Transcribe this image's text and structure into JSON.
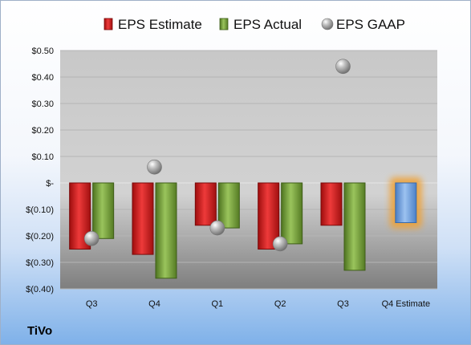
{
  "company": "TiVo",
  "chart_data": {
    "type": "bar",
    "categories": [
      "Q3",
      "Q4",
      "Q1",
      "Q2",
      "Q3",
      "Q4 Estimate"
    ],
    "series": [
      {
        "name": "EPS Estimate",
        "values": [
          -0.25,
          -0.27,
          -0.16,
          -0.25,
          -0.16,
          null
        ],
        "color": "#d42020"
      },
      {
        "name": "EPS Actual",
        "values": [
          -0.21,
          -0.36,
          -0.17,
          -0.23,
          -0.33,
          null
        ],
        "color": "#6e9a32"
      },
      {
        "name": "EPS GAAP",
        "values": [
          -0.21,
          0.06,
          -0.17,
          -0.23,
          0.44,
          null
        ],
        "color": "#9a9a9a",
        "marker": "sphere"
      }
    ],
    "estimate": {
      "category": "Q4 Estimate",
      "value": -0.15,
      "color": "#6f9fdc",
      "glow": "#f0a030"
    },
    "yticks": [
      0.5,
      0.4,
      0.3,
      0.2,
      0.1,
      0,
      -0.1,
      -0.2,
      -0.3,
      -0.4
    ],
    "ytick_labels": [
      "$0.50",
      "$0.40",
      "$0.30",
      "$0.20",
      "$0.10",
      "$-",
      "$(0.10)",
      "$(0.20)",
      "$(0.30)",
      "$(0.40)"
    ],
    "ylim": [
      -0.4,
      0.5
    ],
    "legend": "top",
    "grid": true
  }
}
